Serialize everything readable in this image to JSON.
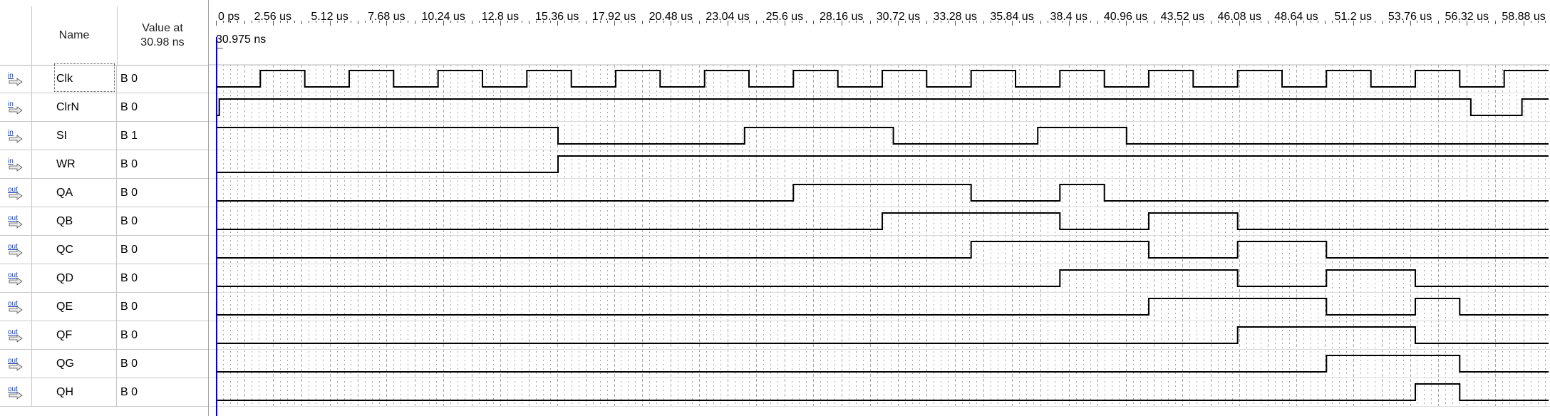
{
  "header": {
    "name_col": "Name",
    "value_col_line1": "Value at",
    "value_col_line2": "30.98 ns"
  },
  "cursor": {
    "label": "30.975 ns",
    "time_us": 0.031
  },
  "timeline": {
    "start_us": 0,
    "end_us": 60,
    "ticks": [
      "0 ps",
      "2.56 us",
      "5.12 us",
      "7.68 us",
      "10.24 us",
      "12.8 us",
      "15.36 us",
      "17.92 us",
      "20.48 us",
      "23.04 us",
      "25.6 us",
      "28.16 us",
      "30.72 us",
      "33.28 us",
      "35.84 us",
      "38.4 us",
      "40.96 us",
      "43.52 us",
      "46.08 us",
      "48.64 us",
      "51.2 us",
      "53.76 us",
      "56.32 us",
      "58.88 us"
    ],
    "tick_values_us": [
      0,
      2.56,
      5.12,
      7.68,
      10.24,
      12.8,
      15.36,
      17.92,
      20.48,
      23.04,
      25.6,
      28.16,
      30.72,
      33.28,
      35.84,
      38.4,
      40.96,
      43.52,
      46.08,
      48.64,
      51.2,
      53.76,
      56.32,
      58.88
    ]
  },
  "colors": {
    "signal": "#000000",
    "cursor": "#0000cc",
    "grid": "#9a9a9a"
  },
  "signals": [
    {
      "dir": "in",
      "name": "Clk",
      "value": "B 0",
      "init": 0,
      "transitions_us": [
        2,
        4,
        6,
        8,
        10,
        12,
        14,
        16,
        18,
        20,
        22,
        24,
        26,
        28,
        30,
        32,
        34,
        36,
        38,
        40,
        42,
        44,
        46,
        48,
        50,
        52,
        54,
        56,
        58
      ]
    },
    {
      "dir": "in",
      "name": "ClrN",
      "value": "B 0",
      "init": 0,
      "transitions_us": [
        0.15,
        56.5,
        58.8
      ]
    },
    {
      "dir": "in",
      "name": "SI",
      "value": "B 1",
      "init": 1,
      "transitions_us": [
        15.4,
        23.8,
        30.5,
        37,
        41
      ]
    },
    {
      "dir": "in",
      "name": "WR",
      "value": "B 0",
      "init": 0,
      "transitions_us": [
        15.4
      ]
    },
    {
      "dir": "out",
      "name": "QA",
      "value": "B 0",
      "init": 0,
      "transitions_us": [
        26,
        34,
        38,
        40
      ]
    },
    {
      "dir": "out",
      "name": "QB",
      "value": "B 0",
      "init": 0,
      "transitions_us": [
        30,
        38,
        42,
        46
      ]
    },
    {
      "dir": "out",
      "name": "QC",
      "value": "B 0",
      "init": 0,
      "transitions_us": [
        34,
        42,
        46,
        50
      ]
    },
    {
      "dir": "out",
      "name": "QD",
      "value": "B 0",
      "init": 0,
      "transitions_us": [
        38,
        46,
        50,
        54
      ]
    },
    {
      "dir": "out",
      "name": "QE",
      "value": "B 0",
      "init": 0,
      "transitions_us": [
        42,
        50,
        54,
        56
      ]
    },
    {
      "dir": "out",
      "name": "QF",
      "value": "B 0",
      "init": 0,
      "transitions_us": [
        46,
        54
      ]
    },
    {
      "dir": "out",
      "name": "QG",
      "value": "B 0",
      "init": 0,
      "transitions_us": [
        50,
        56
      ]
    },
    {
      "dir": "out",
      "name": "QH",
      "value": "B 0",
      "init": 0,
      "transitions_us": [
        54,
        56
      ]
    }
  ]
}
